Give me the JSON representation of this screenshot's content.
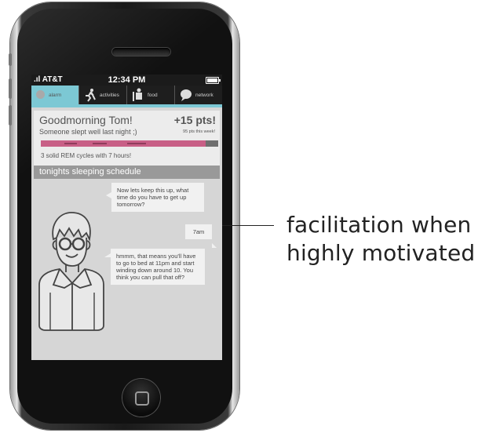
{
  "status_bar": {
    "carrier": ".ıl AT&T",
    "time": "12:34 PM"
  },
  "tabs": [
    {
      "label": "alarm",
      "icon": "alarm-icon"
    },
    {
      "label": "activities",
      "icon": "runner-icon"
    },
    {
      "label": "food",
      "icon": "food-icon"
    },
    {
      "label": "network",
      "icon": "chat-bubble-icon"
    }
  ],
  "greeting": {
    "title": "Goodmorning Tom!",
    "points": "+15 pts!",
    "subtitle": "Someone slept well last night ;)",
    "points_week": "95 pts this week!",
    "rem_text": "3 solid REM cycles with 7 hours!"
  },
  "schedule": {
    "heading": "tonights sleeping schedule"
  },
  "chat": [
    {
      "from": "coach",
      "text": "Now lets keep this up, what time do you have to get up tomorrow?"
    },
    {
      "from": "user",
      "text": "7am"
    },
    {
      "from": "coach",
      "text": "hmmm, that means you'll have to go to bed at 11pm and start winding down around 10. You think you can pull that off?"
    }
  ],
  "annotation": {
    "text": "facilitation when highly motivated"
  },
  "colors": {
    "accent": "#7cc8d4",
    "sleep_bar": "#c85f86",
    "header_bar": "#999999"
  }
}
